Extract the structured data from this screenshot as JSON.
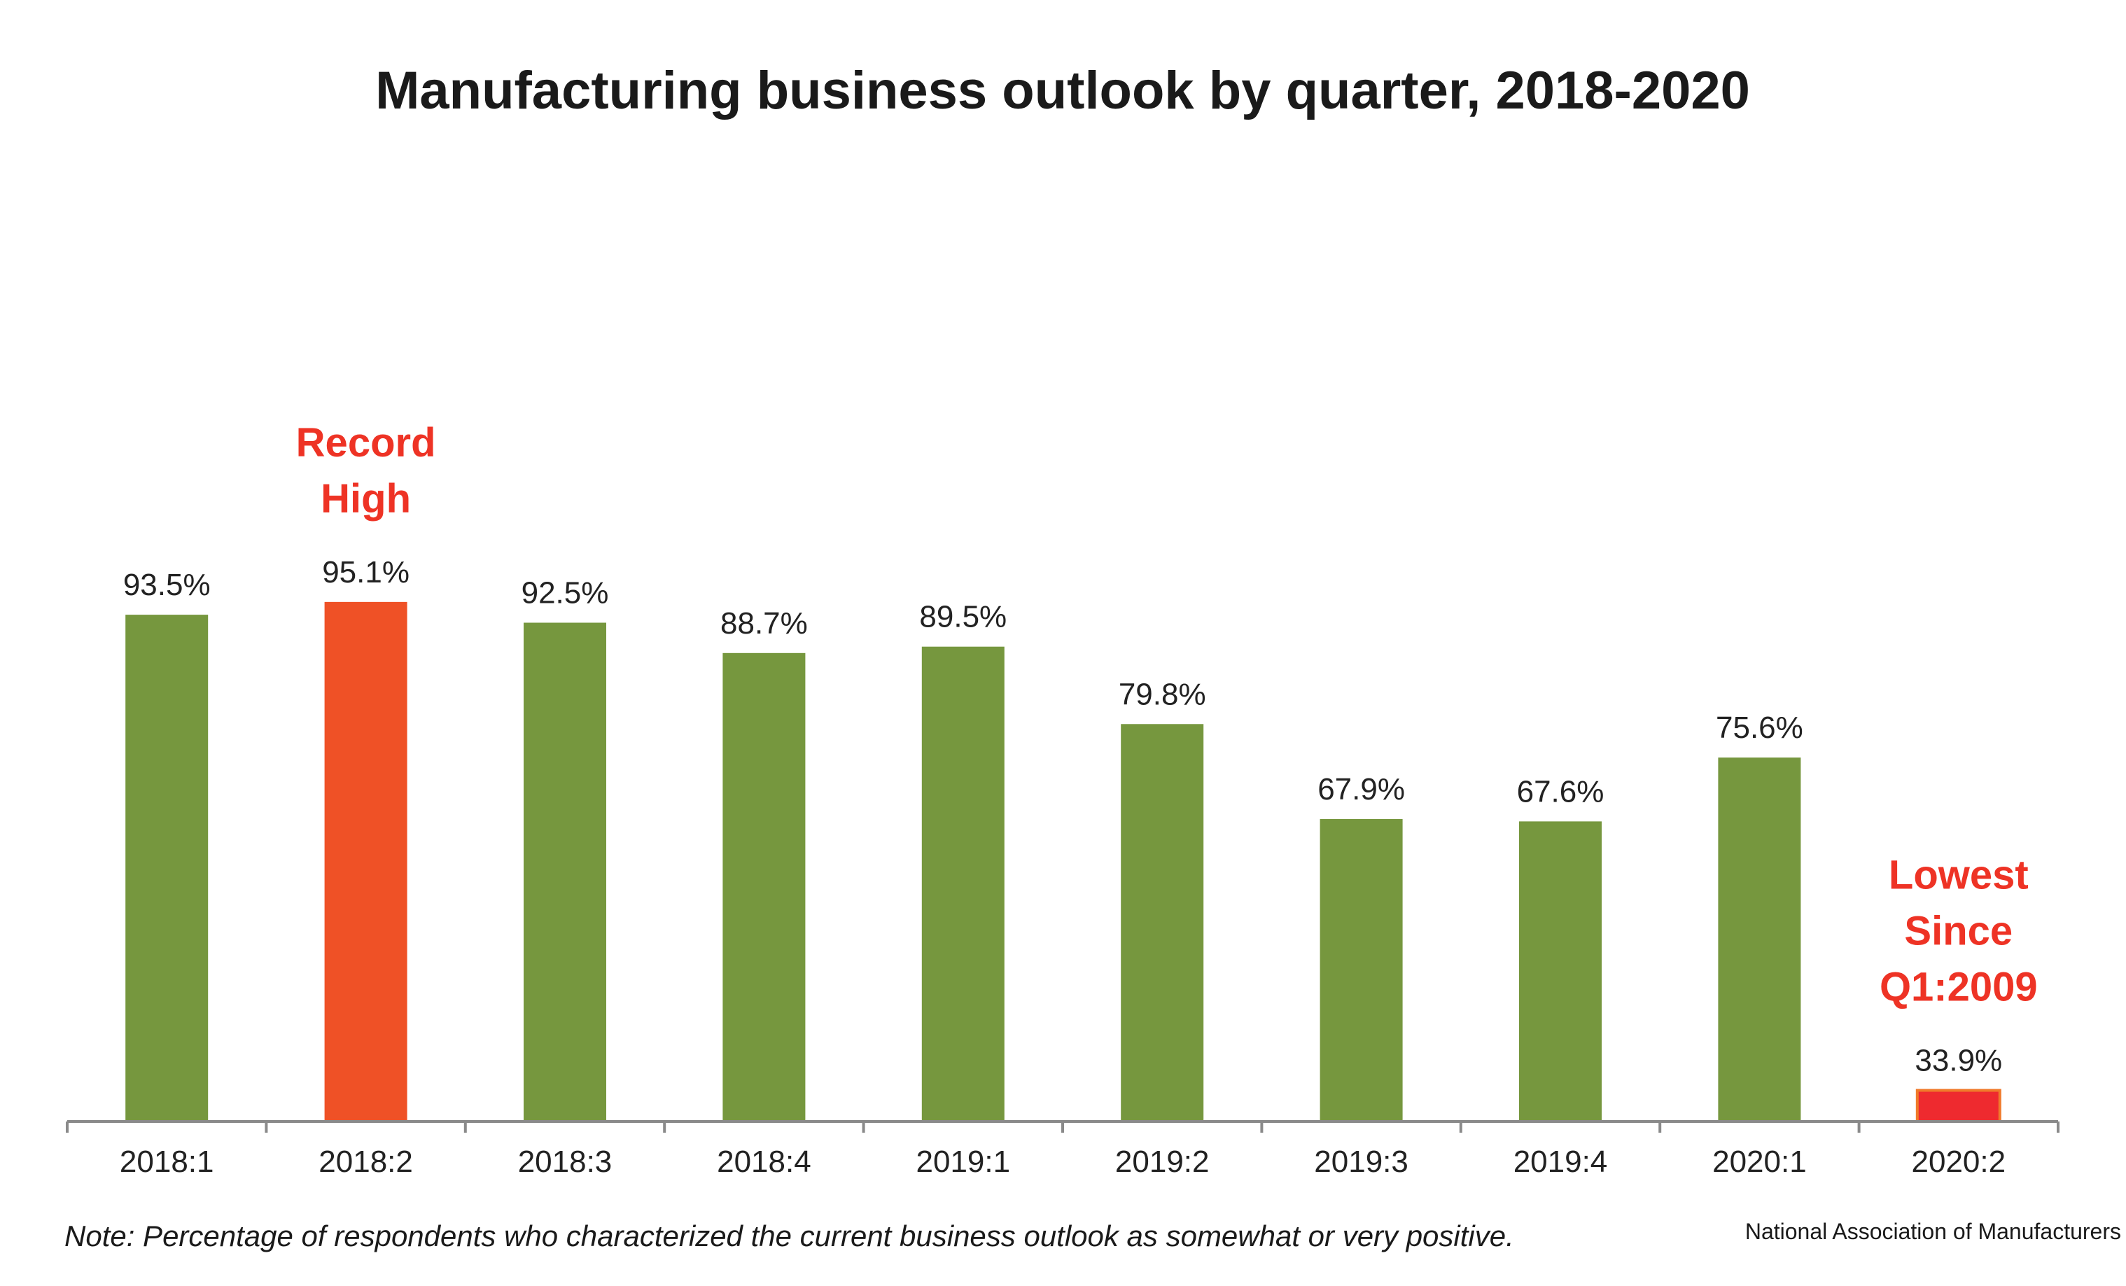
{
  "chart_data": {
    "type": "bar",
    "title": "Manufacturing business outlook by quarter, 2018-2020",
    "categories": [
      "2018:1",
      "2018:2",
      "2018:3",
      "2018:4",
      "2019:1",
      "2019:2",
      "2019:3",
      "2019:4",
      "2020:1",
      "2020:2"
    ],
    "values": [
      93.5,
      95.1,
      92.5,
      88.7,
      89.5,
      79.8,
      67.9,
      67.6,
      75.6,
      33.9
    ],
    "value_labels": [
      "93.5%",
      "95.1%",
      "92.5%",
      "88.7%",
      "89.5%",
      "79.8%",
      "67.9%",
      "67.6%",
      "75.6%",
      "33.9%"
    ],
    "ylim": [
      30,
      100
    ],
    "grid": false,
    "colors": {
      "default": "#76973e",
      "highlights": {
        "2018:2": "#ef5126",
        "2020:2": "#ee2a2f"
      },
      "annotation": "#ee3325"
    },
    "annotations": [
      {
        "category": "2018:2",
        "lines": [
          "Record",
          "High"
        ]
      },
      {
        "category": "2020:2",
        "lines": [
          "Lowest",
          "Since",
          "Q1:2009"
        ]
      }
    ],
    "note": "Note: Percentage of respondents who characterized the current business outlook as somewhat or very positive.",
    "source": "National Association of Manufacturers"
  }
}
